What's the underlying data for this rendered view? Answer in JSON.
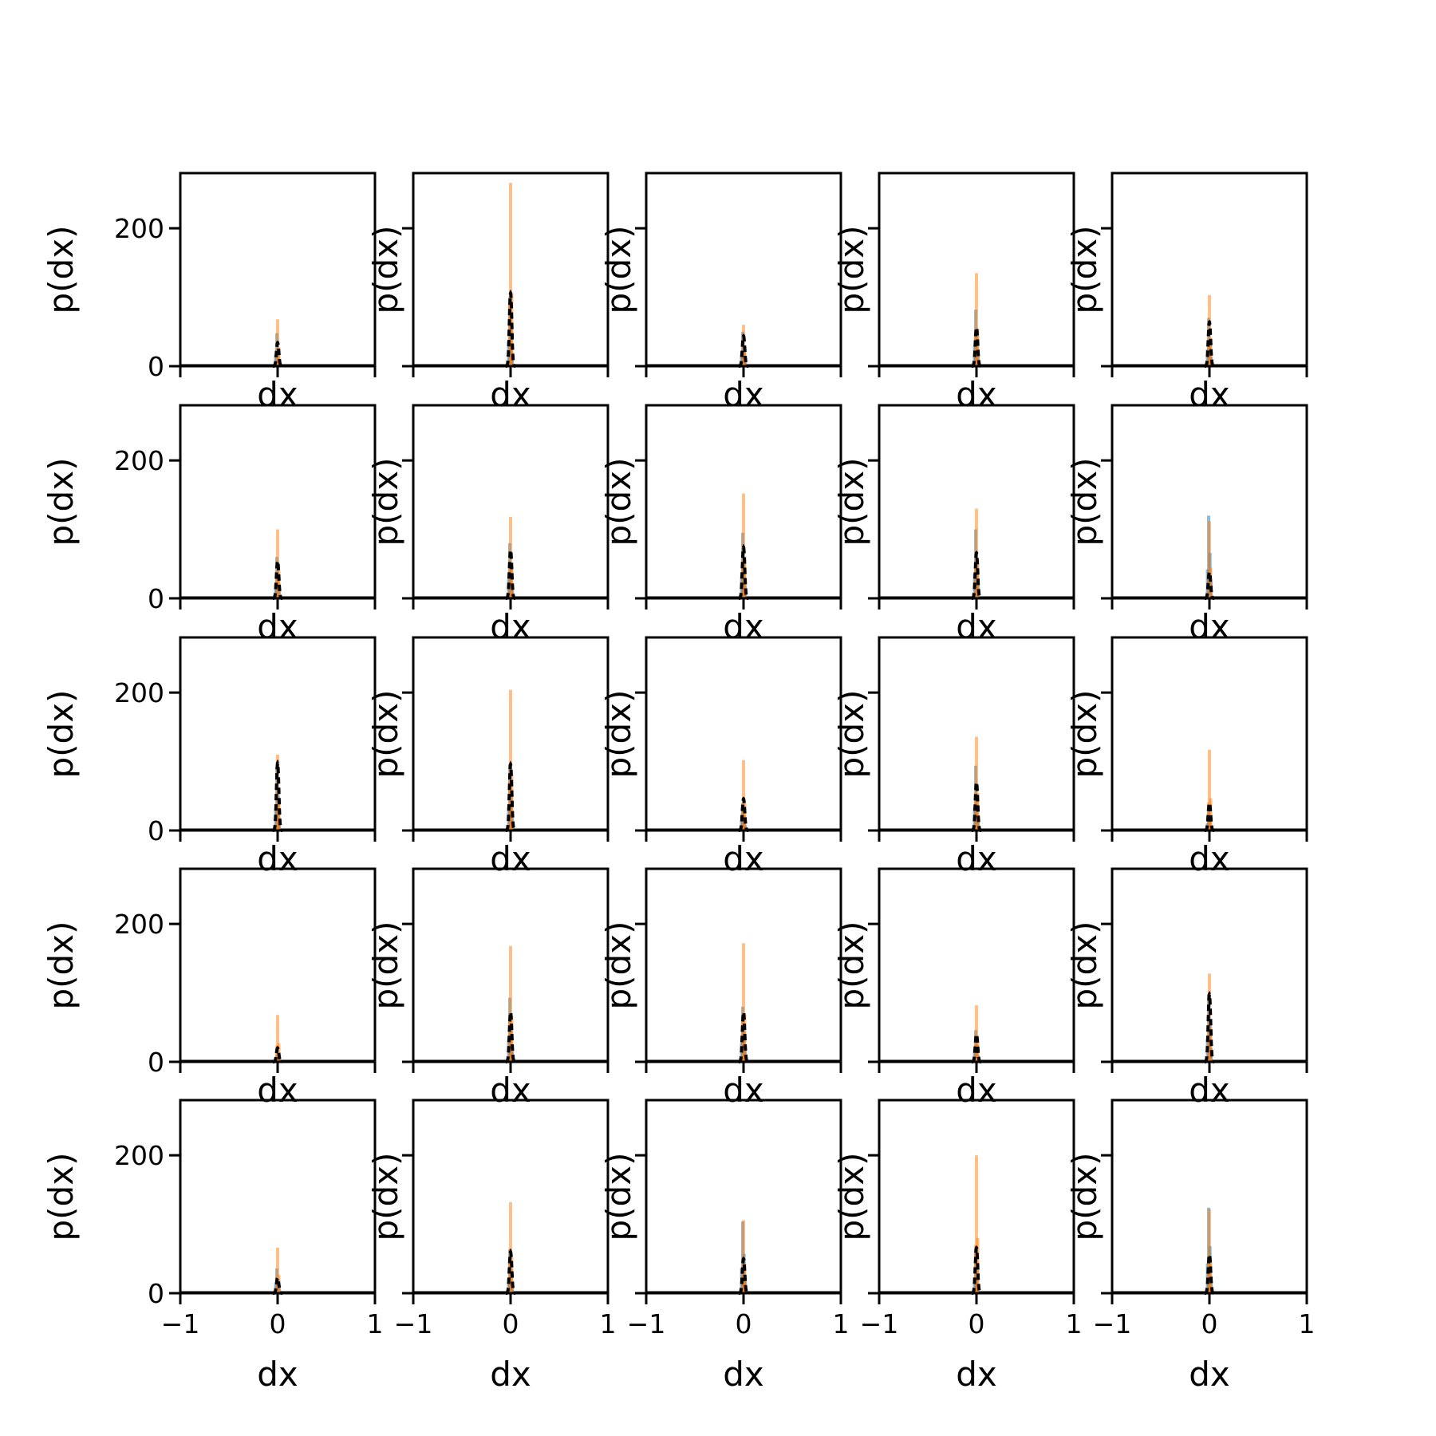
{
  "colors": {
    "hist_blue": "#1f77b4",
    "hist_orange": "#ff7f0e",
    "line_black": "#000000",
    "frame": "#000000"
  },
  "chart_data": {
    "type": "histogram-grid",
    "rows": 5,
    "cols": 5,
    "xlabel": "dx",
    "ylabel": "p(dx)",
    "xlim": [
      -1,
      1
    ],
    "ylim": [
      0,
      280
    ],
    "x_ticks": [
      "−1",
      "0",
      "1"
    ],
    "x_tick_values": [
      -1,
      0,
      1
    ],
    "y_ticks": [
      "0",
      "200"
    ],
    "y_tick_values": [
      0,
      200
    ],
    "series_names": [
      "histogram (blue)",
      "histogram (orange)",
      "density (black dashed)"
    ],
    "panels": [
      {
        "row": 0,
        "col": 0,
        "blue_peak": 48,
        "orange_peak": 68,
        "black_peak": 34
      },
      {
        "row": 0,
        "col": 1,
        "blue_peak": 100,
        "orange_peak": 266,
        "black_peak": 106
      },
      {
        "row": 0,
        "col": 2,
        "blue_peak": 50,
        "orange_peak": 60,
        "black_peak": 44
      },
      {
        "row": 0,
        "col": 3,
        "blue_peak": 82,
        "orange_peak": 135,
        "black_peak": 56
      },
      {
        "row": 0,
        "col": 4,
        "blue_peak": 70,
        "orange_peak": 103,
        "black_peak": 64
      },
      {
        "row": 1,
        "col": 0,
        "blue_peak": 60,
        "orange_peak": 100,
        "black_peak": 54
      },
      {
        "row": 1,
        "col": 1,
        "blue_peak": 80,
        "orange_peak": 118,
        "black_peak": 70
      },
      {
        "row": 1,
        "col": 2,
        "blue_peak": 95,
        "orange_peak": 152,
        "black_peak": 74
      },
      {
        "row": 1,
        "col": 3,
        "blue_peak": 100,
        "orange_peak": 130,
        "black_peak": 66
      },
      {
        "row": 1,
        "col": 4,
        "blue_peak": 120,
        "orange_peak": 112,
        "black_peak": 38
      },
      {
        "row": 2,
        "col": 0,
        "blue_peak": 92,
        "orange_peak": 110,
        "black_peak": 98
      },
      {
        "row": 2,
        "col": 1,
        "blue_peak": 96,
        "orange_peak": 204,
        "black_peak": 96
      },
      {
        "row": 2,
        "col": 2,
        "blue_peak": 40,
        "orange_peak": 102,
        "black_peak": 46
      },
      {
        "row": 2,
        "col": 3,
        "blue_peak": 94,
        "orange_peak": 136,
        "black_peak": 70
      },
      {
        "row": 2,
        "col": 4,
        "blue_peak": 30,
        "orange_peak": 117,
        "black_peak": 40
      },
      {
        "row": 3,
        "col": 0,
        "blue_peak": 10,
        "orange_peak": 68,
        "black_peak": 20
      },
      {
        "row": 3,
        "col": 1,
        "blue_peak": 93,
        "orange_peak": 168,
        "black_peak": 72
      },
      {
        "row": 3,
        "col": 2,
        "blue_peak": 80,
        "orange_peak": 172,
        "black_peak": 72
      },
      {
        "row": 3,
        "col": 3,
        "blue_peak": 46,
        "orange_peak": 82,
        "black_peak": 40
      },
      {
        "row": 3,
        "col": 4,
        "blue_peak": 98,
        "orange_peak": 128,
        "black_peak": 98
      },
      {
        "row": 4,
        "col": 0,
        "blue_peak": 36,
        "orange_peak": 66,
        "black_peak": 22
      },
      {
        "row": 4,
        "col": 1,
        "blue_peak": 64,
        "orange_peak": 132,
        "black_peak": 60
      },
      {
        "row": 4,
        "col": 2,
        "blue_peak": 104,
        "orange_peak": 106,
        "black_peak": 50
      },
      {
        "row": 4,
        "col": 3,
        "blue_peak": 64,
        "orange_peak": 200,
        "black_peak": 66
      },
      {
        "row": 4,
        "col": 4,
        "blue_peak": 124,
        "orange_peak": 122,
        "black_peak": 56
      }
    ]
  }
}
